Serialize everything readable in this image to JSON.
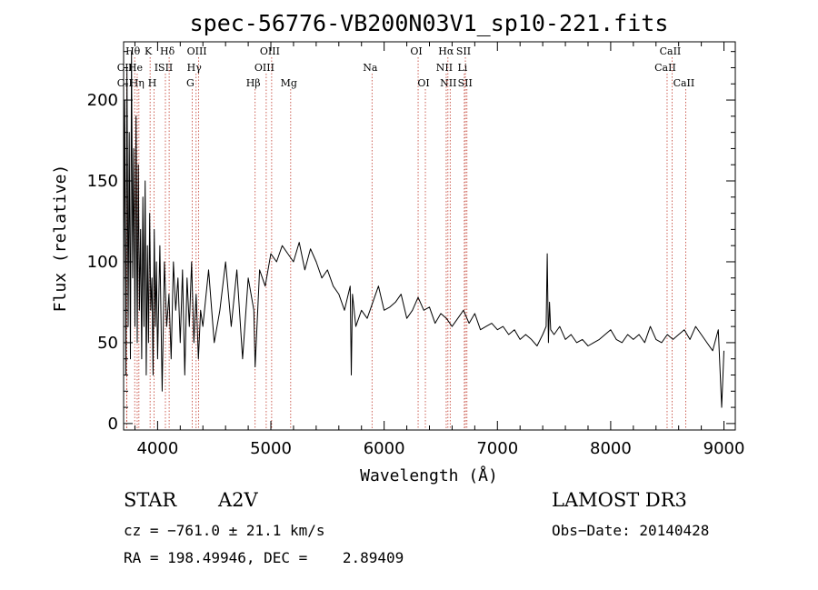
{
  "chart_data": {
    "type": "line",
    "title": "spec-56776-VB200N03V1_sp10-221.fits",
    "xlabel": "Wavelength (Å)",
    "ylabel": "Flux (relative)",
    "xlim": [
      3700,
      9100
    ],
    "ylim": [
      -4,
      236
    ],
    "x_ticks": [
      4000,
      5000,
      6000,
      7000,
      8000,
      9000
    ],
    "y_ticks": [
      0,
      50,
      100,
      150,
      200
    ],
    "grid": false,
    "series": [
      {
        "name": "flux",
        "x": [
          3700,
          3710,
          3720,
          3730,
          3740,
          3750,
          3760,
          3770,
          3780,
          3790,
          3800,
          3810,
          3820,
          3830,
          3840,
          3850,
          3860,
          3870,
          3880,
          3890,
          3900,
          3910,
          3920,
          3930,
          3940,
          3950,
          3960,
          3970,
          3980,
          3990,
          4000,
          4020,
          4040,
          4060,
          4080,
          4100,
          4120,
          4140,
          4160,
          4180,
          4200,
          4220,
          4240,
          4260,
          4280,
          4300,
          4320,
          4340,
          4360,
          4380,
          4400,
          4450,
          4500,
          4550,
          4600,
          4650,
          4700,
          4750,
          4800,
          4850,
          4861,
          4900,
          4950,
          5000,
          5050,
          5100,
          5150,
          5200,
          5250,
          5300,
          5350,
          5400,
          5450,
          5500,
          5550,
          5600,
          5650,
          5700,
          5710,
          5720,
          5750,
          5800,
          5850,
          5900,
          5950,
          6000,
          6050,
          6100,
          6150,
          6200,
          6250,
          6300,
          6350,
          6400,
          6450,
          6500,
          6550,
          6600,
          6650,
          6700,
          6750,
          6800,
          6850,
          6900,
          6950,
          7000,
          7050,
          7100,
          7150,
          7200,
          7250,
          7300,
          7350,
          7400,
          7430,
          7440,
          7450,
          7460,
          7470,
          7500,
          7550,
          7600,
          7650,
          7700,
          7750,
          7800,
          7850,
          7900,
          7950,
          8000,
          8050,
          8100,
          8150,
          8200,
          8250,
          8300,
          8350,
          8400,
          8450,
          8500,
          8550,
          8600,
          8650,
          8700,
          8750,
          8800,
          8850,
          8900,
          8950,
          8980,
          9000
        ],
        "y": [
          80,
          200,
          30,
          220,
          60,
          180,
          40,
          230,
          90,
          170,
          60,
          190,
          50,
          160,
          70,
          120,
          40,
          140,
          60,
          150,
          30,
          110,
          50,
          130,
          70,
          90,
          30,
          120,
          60,
          100,
          40,
          110,
          20,
          100,
          60,
          80,
          40,
          100,
          70,
          90,
          50,
          95,
          30,
          90,
          60,
          100,
          50,
          80,
          40,
          70,
          60,
          95,
          50,
          70,
          100,
          60,
          95,
          40,
          90,
          70,
          35,
          95,
          85,
          105,
          100,
          110,
          105,
          100,
          112,
          95,
          108,
          100,
          90,
          95,
          85,
          80,
          70,
          85,
          30,
          80,
          60,
          70,
          65,
          75,
          85,
          70,
          72,
          75,
          80,
          65,
          70,
          78,
          70,
          72,
          62,
          68,
          65,
          60,
          65,
          70,
          62,
          68,
          58,
          60,
          62,
          58,
          60,
          55,
          58,
          52,
          55,
          52,
          48,
          55,
          60,
          105,
          50,
          75,
          58,
          55,
          60,
          52,
          55,
          50,
          52,
          48,
          50,
          52,
          55,
          58,
          52,
          50,
          55,
          52,
          55,
          50,
          60,
          52,
          50,
          55,
          52,
          55,
          58,
          52,
          60,
          55,
          50,
          45,
          58,
          10,
          45
        ]
      }
    ],
    "lines": [
      {
        "label": "Hθ",
        "x": 3798,
        "row": 0
      },
      {
        "label": "K",
        "x": 3934,
        "row": 0
      },
      {
        "label": "Hδ",
        "x": 4102,
        "row": 0
      },
      {
        "label": "OIII",
        "x": 4363,
        "row": 0
      },
      {
        "label": "OIII",
        "x": 5007,
        "row": 0
      },
      {
        "label": "OI",
        "x": 6300,
        "row": 0
      },
      {
        "label": "Hα",
        "x": 6563,
        "row": 0
      },
      {
        "label": "SII",
        "x": 6717,
        "row": 0
      },
      {
        "label": "CaII",
        "x": 8542,
        "row": 0
      },
      {
        "label": "CII",
        "x": 3727,
        "row": 1
      },
      {
        "label": "He",
        "x": 3820,
        "row": 1
      },
      {
        "label": "ISII",
        "x": 4069,
        "row": 1
      },
      {
        "label": "Hγ",
        "x": 4340,
        "row": 1
      },
      {
        "label": "OIII",
        "x": 4959,
        "row": 1
      },
      {
        "label": "Na",
        "x": 5893,
        "row": 1
      },
      {
        "label": "NII",
        "x": 6548,
        "row": 1
      },
      {
        "label": "Li",
        "x": 6708,
        "row": 1
      },
      {
        "label": "CaII",
        "x": 8498,
        "row": 1
      },
      {
        "label": "CII",
        "x": 3727,
        "row": 2
      },
      {
        "label": "Hη",
        "x": 3835,
        "row": 2
      },
      {
        "label": "H",
        "x": 3969,
        "row": 2
      },
      {
        "label": "G",
        "x": 4305,
        "row": 2
      },
      {
        "label": "Hβ",
        "x": 4861,
        "row": 2
      },
      {
        "label": "Mg",
        "x": 5175,
        "row": 2
      },
      {
        "label": "OI",
        "x": 6364,
        "row": 2
      },
      {
        "label": "NII",
        "x": 6583,
        "row": 2
      },
      {
        "label": "SII",
        "x": 6731,
        "row": 2
      },
      {
        "label": "CaII",
        "x": 8662,
        "row": 2
      }
    ]
  },
  "info": {
    "object_type": "STAR",
    "subclass": "A2V",
    "survey": "LAMOST DR3",
    "cz": "cz = −761.0 ± 21.1 km/s",
    "obs_date": "Obs−Date: 20140428",
    "coords": "RA = 198.49946, DEC =    2.89409"
  }
}
